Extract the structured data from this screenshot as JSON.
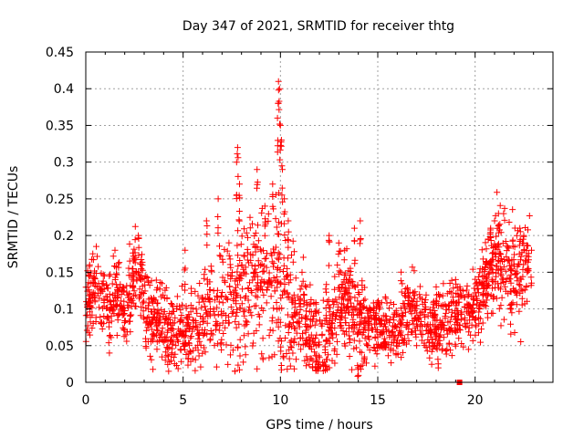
{
  "chart_data": {
    "type": "scatter",
    "title": "Day 347 of 2021, SRMTID for receiver thtg",
    "xlabel": "GPS time / hours",
    "ylabel": "SRMTID / TECUs",
    "xlim": [
      0,
      24
    ],
    "ylim": [
      0,
      0.45
    ],
    "x_ticks": [
      0,
      5,
      10,
      15,
      20
    ],
    "y_ticks": [
      0,
      0.05,
      0.1,
      0.15,
      0.2,
      0.25,
      0.3,
      0.35,
      0.4,
      0.45
    ],
    "x_tick_labels": [
      "0",
      "5",
      "10",
      "15",
      "20"
    ],
    "y_tick_labels": [
      "0",
      "0.05",
      "0.1",
      "0.15",
      "0.2",
      "0.25",
      "0.3",
      "0.35",
      "0.4",
      "0.45"
    ],
    "grid": true,
    "marker": "+",
    "color": "#ff0000",
    "trend": [
      [
        0.0,
        0.1
      ],
      [
        0.3,
        0.12
      ],
      [
        0.6,
        0.13
      ],
      [
        0.9,
        0.11
      ],
      [
        1.2,
        0.09
      ],
      [
        1.5,
        0.12
      ],
      [
        1.8,
        0.11
      ],
      [
        2.1,
        0.1
      ],
      [
        2.5,
        0.15
      ],
      [
        2.8,
        0.14
      ],
      [
        3.1,
        0.1
      ],
      [
        3.5,
        0.09
      ],
      [
        4.0,
        0.08
      ],
      [
        4.5,
        0.065
      ],
      [
        5.0,
        0.07
      ],
      [
        5.5,
        0.075
      ],
      [
        6.0,
        0.08
      ],
      [
        6.5,
        0.1
      ],
      [
        7.0,
        0.11
      ],
      [
        7.5,
        0.12
      ],
      [
        8.0,
        0.12
      ],
      [
        8.5,
        0.14
      ],
      [
        9.0,
        0.13
      ],
      [
        9.5,
        0.14
      ],
      [
        10.0,
        0.13
      ],
      [
        10.5,
        0.1
      ],
      [
        11.0,
        0.09
      ],
      [
        11.5,
        0.07
      ],
      [
        12.0,
        0.05
      ],
      [
        12.5,
        0.07
      ],
      [
        13.0,
        0.1
      ],
      [
        13.5,
        0.11
      ],
      [
        14.0,
        0.09
      ],
      [
        14.5,
        0.08
      ],
      [
        15.0,
        0.08
      ],
      [
        15.5,
        0.07
      ],
      [
        16.0,
        0.06
      ],
      [
        16.5,
        0.09
      ],
      [
        17.0,
        0.1
      ],
      [
        17.5,
        0.08
      ],
      [
        18.0,
        0.07
      ],
      [
        18.5,
        0.08
      ],
      [
        19.0,
        0.09
      ],
      [
        19.5,
        0.1
      ],
      [
        20.0,
        0.1
      ],
      [
        20.5,
        0.13
      ],
      [
        21.0,
        0.17
      ],
      [
        21.5,
        0.16
      ],
      [
        22.0,
        0.15
      ],
      [
        22.5,
        0.15
      ],
      [
        22.8,
        0.16
      ]
    ],
    "spread": [
      [
        0.0,
        0.025
      ],
      [
        6.5,
        0.03
      ],
      [
        7.5,
        0.045
      ],
      [
        8.0,
        0.05
      ],
      [
        9.0,
        0.045
      ],
      [
        10.0,
        0.06
      ],
      [
        11.0,
        0.03
      ],
      [
        13.0,
        0.035
      ],
      [
        14.0,
        0.035
      ],
      [
        15.0,
        0.02
      ],
      [
        20.5,
        0.025
      ],
      [
        21.0,
        0.035
      ],
      [
        22.8,
        0.03
      ]
    ],
    "peaks": [
      [
        0.2,
        0.16
      ],
      [
        1.5,
        0.18
      ],
      [
        2.7,
        0.2
      ],
      [
        5.1,
        0.18
      ],
      [
        6.2,
        0.22
      ],
      [
        6.8,
        0.25
      ],
      [
        7.8,
        0.32
      ],
      [
        7.75,
        0.3
      ],
      [
        7.9,
        0.27
      ],
      [
        8.8,
        0.29
      ],
      [
        9.2,
        0.24
      ],
      [
        9.6,
        0.27
      ],
      [
        9.9,
        0.41
      ],
      [
        9.95,
        0.4
      ],
      [
        9.85,
        0.36
      ],
      [
        10.0,
        0.35
      ],
      [
        10.05,
        0.33
      ],
      [
        10.1,
        0.29
      ],
      [
        10.2,
        0.25
      ],
      [
        10.4,
        0.22
      ],
      [
        11.2,
        0.12
      ],
      [
        12.5,
        0.2
      ],
      [
        13.0,
        0.19
      ],
      [
        13.3,
        0.18
      ],
      [
        13.8,
        0.21
      ],
      [
        14.1,
        0.22
      ],
      [
        14.0,
        0.02
      ],
      [
        16.2,
        0.15
      ],
      [
        18.0,
        0.13
      ],
      [
        19.0,
        0.14
      ],
      [
        20.8,
        0.21
      ],
      [
        21.2,
        0.23
      ],
      [
        21.0,
        0.22
      ],
      [
        22.3,
        0.21
      ],
      [
        22.5,
        0.2
      ],
      [
        22.9,
        0.18
      ]
    ],
    "n_points": 2200,
    "outlier_square": [
      19.2,
      0.0
    ]
  }
}
